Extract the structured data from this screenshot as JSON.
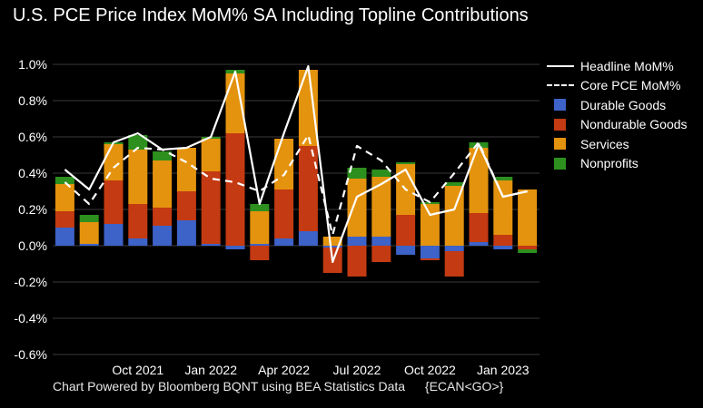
{
  "title": "U.S. PCE Price Index MoM% SA Including Topline Contributions",
  "footer": {
    "source": "Chart Powered by Bloomberg BQNT using BEA Statistics Data",
    "code": "{ECAN<GO>}"
  },
  "colors": {
    "background": "#000000",
    "grid": "#3a3a3a",
    "durable": "#3d62c8",
    "nondurable": "#c43a12",
    "services": "#e4930e",
    "nonprofits": "#2d8f1e",
    "headline": "#ffffff",
    "core": "#ffffff"
  },
  "legend": [
    {
      "label": "Headline MoM%",
      "kind": "solid-line",
      "color": "#ffffff"
    },
    {
      "label": "Core PCE MoM%",
      "kind": "dashed-line",
      "color": "#ffffff"
    },
    {
      "label": "Durable Goods",
      "kind": "box",
      "color": "#3d62c8"
    },
    {
      "label": "Nondurable Goods",
      "kind": "box",
      "color": "#c43a12"
    },
    {
      "label": "Services",
      "kind": "box",
      "color": "#e4930e"
    },
    {
      "label": "Nonprofits",
      "kind": "box",
      "color": "#2d8f1e"
    }
  ],
  "chart_data": {
    "type": "bar",
    "stacked": true,
    "title": "U.S. PCE Price Index MoM% SA Including Topline Contributions",
    "categories": [
      "Jul 2021",
      "Aug 2021",
      "Sep 2021",
      "Oct 2021",
      "Nov 2021",
      "Dec 2021",
      "Jan 2022",
      "Feb 2022",
      "Mar 2022",
      "Apr 2022",
      "May 2022",
      "Jun 2022",
      "Jul 2022",
      "Aug 2022",
      "Sep 2022",
      "Oct 2022",
      "Nov 2022",
      "Dec 2022",
      "Jan 2023",
      "Feb 2023"
    ],
    "x_tick_labels": [
      {
        "index": 3,
        "label": "Oct 2021"
      },
      {
        "index": 6,
        "label": "Jan 2022"
      },
      {
        "index": 9,
        "label": "Apr 2022"
      },
      {
        "index": 12,
        "label": "Jul 2022"
      },
      {
        "index": 15,
        "label": "Oct 2022"
      },
      {
        "index": 18,
        "label": "Jan 2023"
      }
    ],
    "y_ticks": [
      "1.0%",
      "0.8%",
      "0.6%",
      "0.4%",
      "0.2%",
      "0.0%",
      "-0.2%",
      "-0.4%",
      "-0.6%"
    ],
    "ylim": [
      -0.6,
      1.0
    ],
    "y_unit": "%",
    "grid": true,
    "legend_position": "top-right",
    "series": [
      {
        "name": "Durable Goods",
        "type": "bar",
        "values": [
          0.1,
          0.01,
          0.12,
          0.04,
          0.11,
          0.14,
          0.01,
          -0.02,
          0.01,
          0.04,
          0.08,
          -0.01,
          0.05,
          0.05,
          -0.05,
          -0.07,
          -0.03,
          0.02,
          -0.02,
          0.0
        ]
      },
      {
        "name": "Nondurable Goods",
        "type": "bar",
        "values": [
          0.09,
          0.0,
          0.24,
          0.19,
          0.1,
          0.16,
          0.4,
          0.62,
          -0.08,
          0.27,
          0.47,
          -0.14,
          -0.17,
          -0.09,
          0.17,
          -0.01,
          -0.14,
          0.16,
          0.06,
          -0.02
        ]
      },
      {
        "name": "Services",
        "type": "bar",
        "values": [
          0.15,
          0.12,
          0.2,
          0.3,
          0.26,
          0.24,
          0.18,
          0.33,
          0.18,
          0.28,
          0.42,
          0.05,
          0.32,
          0.33,
          0.28,
          0.23,
          0.33,
          0.36,
          0.3,
          0.31
        ]
      },
      {
        "name": "Nonprofits",
        "type": "bar",
        "values": [
          0.04,
          0.04,
          0.01,
          0.08,
          0.05,
          0.0,
          0.01,
          0.02,
          0.04,
          0.0,
          0.0,
          0.0,
          0.06,
          0.04,
          0.01,
          0.01,
          0.02,
          0.03,
          0.02,
          -0.02
        ]
      },
      {
        "name": "Headline MoM%",
        "type": "line",
        "style": "solid",
        "values": [
          0.42,
          0.31,
          0.57,
          0.62,
          0.53,
          0.54,
          0.6,
          0.96,
          0.23,
          0.62,
          0.99,
          -0.09,
          0.27,
          0.34,
          0.42,
          0.17,
          0.2,
          0.56,
          0.27,
          0.3
        ]
      },
      {
        "name": "Core PCE MoM%",
        "type": "line",
        "style": "dashed",
        "values": [
          0.35,
          0.23,
          0.43,
          0.54,
          0.53,
          0.46,
          0.37,
          0.35,
          0.3,
          0.39,
          0.61,
          0.06,
          0.55,
          0.47,
          0.31,
          0.24,
          0.4,
          0.57,
          0.27,
          0.3
        ]
      }
    ]
  }
}
